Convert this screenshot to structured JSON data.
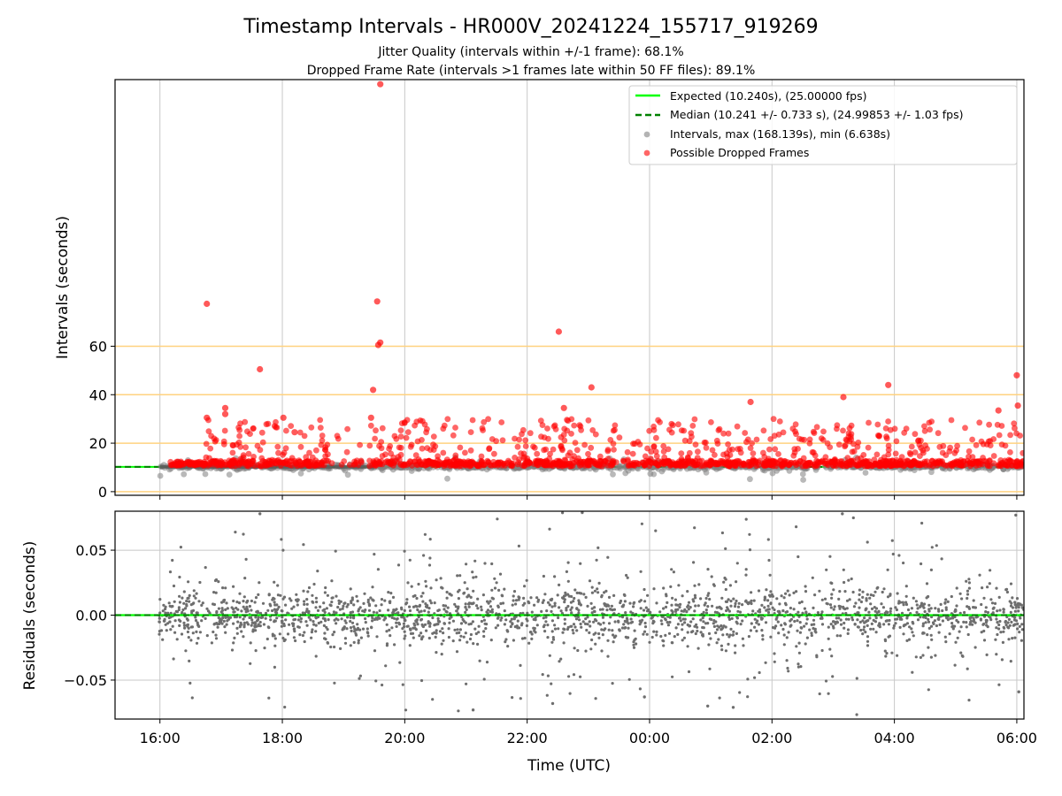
{
  "figure": {
    "title": "Timestamp Intervals - HR000V_20241224_155717_919269",
    "subtitle_1": "Jitter Quality (intervals within +/-1 frame): 68.1%",
    "subtitle_2": "Dropped Frame Rate (intervals >1 frames late within 50 FF files): 89.1%"
  },
  "colors": {
    "expected_line": "#00ff00",
    "median_line": "#008000",
    "intervals": "#808080",
    "dropped": "#ff0000",
    "threshold_lines": "#ffd27f",
    "grid": "#c8c8c8"
  },
  "chart_data": [
    {
      "type": "scatter",
      "panel": "intervals",
      "ylabel": "Intervals (seconds)",
      "xlabel": "",
      "x_range": [
        "15:16",
        "06:07"
      ],
      "ylim": [
        -1.5,
        170
      ],
      "y_ticks": [
        "0",
        "20",
        "40",
        "60"
      ],
      "x_ticks": [
        "16:00",
        "18:00",
        "20:00",
        "22:00",
        "00:00",
        "02:00",
        "04:00",
        "06:00"
      ],
      "threshold_lines": [
        0,
        20,
        40,
        60
      ],
      "grid": "vertical",
      "legend_position": "upper right",
      "series": [
        {
          "name": "Expected (10.240s), (25.00000 fps)",
          "kind": "line",
          "style": "solid",
          "value": 10.24
        },
        {
          "name": "Median (10.241 +/- 0.733 s), (24.99853 +/- 1.03 fps)",
          "kind": "line",
          "style": "dashed",
          "value": 10.241
        },
        {
          "name": "Intervals, max (168.139s), min (6.638s)",
          "kind": "scatter",
          "note": "baseline band near 10.24 s"
        },
        {
          "name": "Possible Dropped Frames",
          "kind": "scatter",
          "outliers": [
            {
              "x": "16:46",
              "y": 77.5
            },
            {
              "x": "16:46",
              "y": 30.5
            },
            {
              "x": "17:04",
              "y": 34.5
            },
            {
              "x": "17:04",
              "y": 32
            },
            {
              "x": "17:38",
              "y": 50.5
            },
            {
              "x": "18:01",
              "y": 30.5
            },
            {
              "x": "18:12",
              "y": 24.5
            },
            {
              "x": "19:27",
              "y": 30.5
            },
            {
              "x": "19:29",
              "y": 42
            },
            {
              "x": "19:33",
              "y": 78.5
            },
            {
              "x": "19:34",
              "y": 60.5
            },
            {
              "x": "19:36",
              "y": 61.5
            },
            {
              "x": "19:36",
              "y": 168.1
            },
            {
              "x": "22:31",
              "y": 66
            },
            {
              "x": "22:36",
              "y": 34.5
            },
            {
              "x": "23:03",
              "y": 43
            },
            {
              "x": "01:39",
              "y": 37
            },
            {
              "x": "03:10",
              "y": 39
            },
            {
              "x": "03:54",
              "y": 44
            },
            {
              "x": "05:42",
              "y": 33.5
            },
            {
              "x": "06:00",
              "y": 48
            },
            {
              "x": "06:01",
              "y": 35.5
            }
          ],
          "scatter_band": {
            "x_from": "16:10",
            "x_to": "06:07",
            "y_min": 9.5,
            "y_max": 30
          }
        }
      ]
    },
    {
      "type": "scatter",
      "panel": "residuals",
      "ylabel": "Residuals (seconds)",
      "xlabel": "Time (UTC)",
      "x_range": [
        "15:16",
        "06:07"
      ],
      "ylim": [
        -0.08,
        0.08
      ],
      "y_ticks": [
        "−0.05",
        "0.00",
        "0.05"
      ],
      "x_ticks": [
        "16:00",
        "18:00",
        "20:00",
        "22:00",
        "00:00",
        "02:00",
        "04:00",
        "06:00"
      ],
      "grid": "both",
      "series": [
        {
          "name": "Expected",
          "kind": "line",
          "style": "solid",
          "value": 0.0
        },
        {
          "name": "Median",
          "kind": "line",
          "style": "dashed",
          "value": 0.0
        },
        {
          "name": "Residuals",
          "kind": "scatter",
          "x_from": "15:59",
          "x_to": "06:07",
          "outliers": [
            {
              "x": "21:07",
              "y": -0.073
            },
            {
              "x": "22:25",
              "y": -0.068
            },
            {
              "x": "23:55",
              "y": -0.063
            },
            {
              "x": "00:57",
              "y": -0.07
            },
            {
              "x": "01:22",
              "y": -0.071
            },
            {
              "x": "06:02",
              "y": -0.059
            },
            {
              "x": "17:38",
              "y": 0.078
            },
            {
              "x": "22:54",
              "y": 0.079
            },
            {
              "x": "03:09",
              "y": 0.078
            },
            {
              "x": "05:59",
              "y": 0.077
            }
          ]
        }
      ]
    }
  ]
}
